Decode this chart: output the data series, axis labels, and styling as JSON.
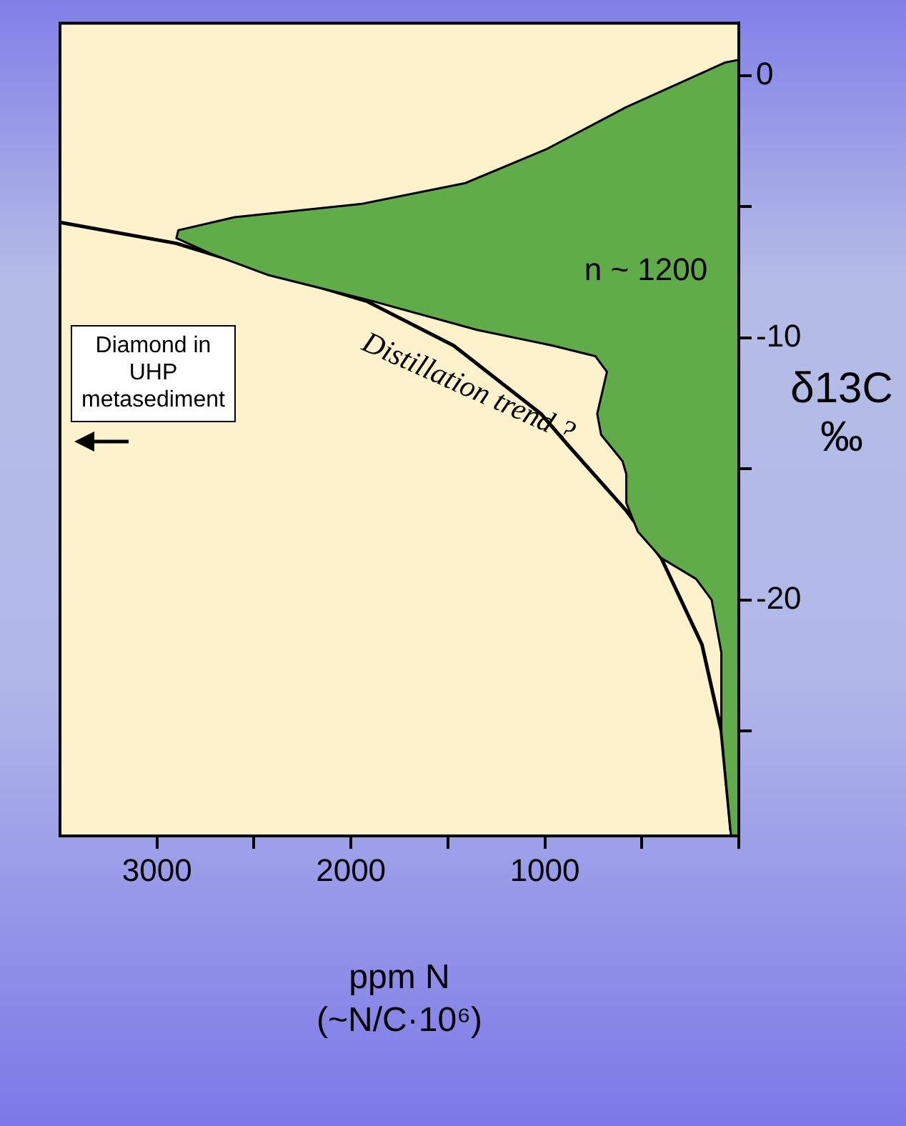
{
  "chart_data": {
    "type": "area",
    "orientation": "horizontal",
    "xlabel": "ppm N\n(~N/C·10⁶)",
    "ylabel": "δ13C\n‰",
    "xlim": [
      3500,
      0
    ],
    "xticks": [
      {
        "value": 3000,
        "label": "3000"
      },
      {
        "value": 2500,
        "label": null
      },
      {
        "value": 2000,
        "label": "2000"
      },
      {
        "value": 1500,
        "label": null
      },
      {
        "value": 1000,
        "label": "1000"
      },
      {
        "value": 500,
        "label": null
      },
      {
        "value": 0,
        "label": null
      }
    ],
    "ylim": [
      -29,
      2
    ],
    "yticks": [
      {
        "value": -25,
        "label": null
      },
      -20,
      {
        "value": -15,
        "label": null
      },
      -10,
      {
        "value": -5,
        "label": null
      },
      0
    ],
    "series": [
      {
        "color": "#60ac48",
        "values": [
          40,
          90,
          90,
          140,
          220,
          400,
          520,
          580,
          580,
          600,
          710,
          730,
          680,
          740,
          960,
          1350,
          1890,
          2430,
          2720,
          2900,
          2890,
          2600,
          1950,
          1410,
          990,
          580,
          190,
          70,
          0
        ],
        "x": [
          -29.0,
          -25.0,
          -22.0,
          -20.0,
          -19.2,
          -18.4,
          -17.4,
          -16.3,
          -15.2,
          -14.7,
          -13.7,
          -12.9,
          -11.3,
          -10.7,
          -10.3,
          -9.7,
          -8.6,
          -7.6,
          -6.8,
          -6.2,
          -5.9,
          -5.4,
          -4.9,
          -4.1,
          -2.8,
          -1.2,
          0.1,
          0.5,
          0.6
        ]
      },
      {
        "type": "line",
        "name": "Distillation trend ?",
        "color": "#000000",
        "values": [
          40,
          90,
          190,
          400,
          580,
          880,
          1020,
          1470,
          1920,
          2370,
          2900,
          3500
        ],
        "x": [
          -28.8,
          -25.0,
          -21.7,
          -18.4,
          -16.6,
          -14.1,
          -12.9,
          -10.3,
          -8.6,
          -7.6,
          -6.4,
          -5.6
        ]
      }
    ],
    "annotations": [
      "n ~ 1200",
      "Diamond in\nUHP\nmetasediment"
    ],
    "legend": false,
    "grid": false
  }
}
